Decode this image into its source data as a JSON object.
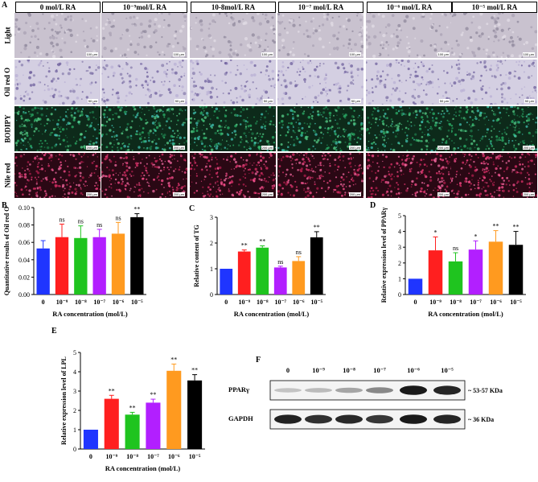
{
  "panel_a": {
    "letter": "A",
    "columns": [
      "0 mol/L RA",
      "10⁻⁹mol/L RA",
      "10-8mol/L RA",
      "10⁻⁷ mol/L RA",
      "10⁻⁶ mol/L RA",
      "10⁻⁵ mol/L RA"
    ],
    "rows": [
      {
        "label": "Light",
        "scalebar": "100 μm"
      },
      {
        "label": "Oil red O",
        "scalebar": "50 μm"
      },
      {
        "label": "BODIPY",
        "scalebar": "200 μm"
      },
      {
        "label": "Nile red",
        "scalebar": "200 μm"
      }
    ]
  },
  "colors": {
    "c0": "#1f35ff",
    "c9": "#ff1f1f",
    "c8": "#1fc41f",
    "c7": "#b21fff",
    "c6": "#ff9a1f",
    "c5": "#000000"
  },
  "chart_data": [
    {
      "panel": "B",
      "type": "bar",
      "categories": [
        "0",
        "10⁻⁹",
        "10⁻⁸",
        "10⁻⁷",
        "10⁻⁶",
        "10⁻⁵"
      ],
      "values": [
        0.053,
        0.066,
        0.065,
        0.066,
        0.07,
        0.089
      ],
      "errors": [
        0.009,
        0.015,
        0.014,
        0.009,
        0.013,
        0.004
      ],
      "annotations": [
        "",
        "ns",
        "ns",
        "ns",
        "ns",
        "**"
      ],
      "ylabel": "Quantitative results of Oil red O",
      "xlabel": "RA concentration (mol/L)",
      "ylim": [
        0,
        0.1
      ],
      "yticks": [
        "0.00",
        "0.02",
        "0.04",
        "0.06",
        "0.08",
        "0.10"
      ]
    },
    {
      "panel": "C",
      "type": "bar",
      "categories": [
        "0",
        "10⁻⁹",
        "10⁻⁸",
        "10⁻⁷",
        "10⁻⁶",
        "10⁻⁵"
      ],
      "values": [
        1.0,
        1.67,
        1.82,
        1.05,
        1.3,
        2.22
      ],
      "errors": [
        0,
        0.06,
        0.07,
        0.05,
        0.17,
        0.22
      ],
      "annotations": [
        "",
        "**",
        "**",
        "ns",
        "ns",
        "**"
      ],
      "ylabel": "Relative content of TG",
      "xlabel": "RA concentration (mol/L)",
      "ylim": [
        0,
        3
      ],
      "yticks": [
        "0",
        "1",
        "2",
        "3"
      ]
    },
    {
      "panel": "D",
      "type": "bar",
      "categories": [
        "0",
        "10⁻⁹",
        "10⁻⁸",
        "10⁻⁷",
        "10⁻⁶",
        "10⁻⁵"
      ],
      "values": [
        1.0,
        2.8,
        2.1,
        2.85,
        3.35,
        3.15
      ],
      "errors": [
        0,
        0.85,
        0.55,
        0.55,
        0.7,
        0.85
      ],
      "annotations": [
        "",
        "*",
        "ns",
        "*",
        "**",
        "**"
      ],
      "ylabel": "Relative expression level of PPARγ",
      "xlabel": "RA concentration (mol/L)",
      "ylim": [
        0,
        5
      ],
      "yticks": [
        "0",
        "1",
        "2",
        "3",
        "4",
        "5"
      ]
    },
    {
      "panel": "E",
      "type": "bar",
      "categories": [
        "0",
        "10⁻⁹",
        "10⁻⁸",
        "10⁻⁷",
        "10⁻⁶",
        "10⁻⁵"
      ],
      "values": [
        1.0,
        2.6,
        1.78,
        2.4,
        4.05,
        3.55
      ],
      "errors": [
        0,
        0.18,
        0.12,
        0.18,
        0.35,
        0.3
      ],
      "annotations": [
        "",
        "**",
        "**",
        "**",
        "**",
        "**"
      ],
      "ylabel": "Relative expression level of LPL",
      "xlabel": "RA concentration (mol/L)",
      "ylim": [
        0,
        5
      ],
      "yticks": [
        "0",
        "1",
        "2",
        "3",
        "4",
        "5"
      ]
    }
  ],
  "panel_f": {
    "letter": "F",
    "lanes": [
      "0",
      "10⁻⁹",
      "10⁻⁸",
      "10⁻⁷",
      "10⁻⁶",
      "10⁻⁵"
    ],
    "bands": [
      {
        "label": "PPARγ",
        "size": "~ 53-57 KDa",
        "intensities": [
          0.18,
          0.22,
          0.32,
          0.45,
          0.95,
          0.9
        ]
      },
      {
        "label": "GAPDH",
        "size": "~ 36 KDa",
        "intensities": [
          0.92,
          0.85,
          0.88,
          0.82,
          0.95,
          0.9
        ]
      }
    ]
  }
}
